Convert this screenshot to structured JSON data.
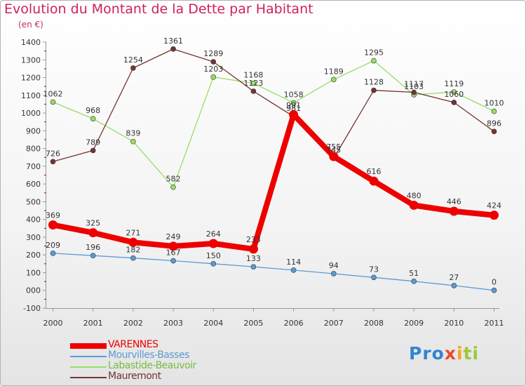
{
  "title": "Evolution du Montant de la Dette par Habitant",
  "unit": "(en €)",
  "logo": {
    "text": "Proxiti"
  },
  "chart_data": {
    "type": "line",
    "x": [
      "2000",
      "2001",
      "2002",
      "2003",
      "2004",
      "2005",
      "2006",
      "2007",
      "2008",
      "2009",
      "2010",
      "2011"
    ],
    "ylim": [
      -100,
      1400
    ],
    "yticks": [
      "-100",
      "000",
      "100",
      "200",
      "300",
      "400",
      "500",
      "600",
      "700",
      "800",
      "900",
      "1000",
      "1100",
      "1200",
      "1300",
      "1400"
    ],
    "grid": false,
    "legend_position": "bottom-left",
    "series": [
      {
        "name": "VARENNES",
        "color": "#ee0000",
        "values": [
          369,
          325,
          271,
          249,
          264,
          233,
          991,
          755,
          616,
          480,
          446,
          424
        ]
      },
      {
        "name": "Mourvilles-Basses",
        "color": "#5b9bd5",
        "values": [
          209,
          196,
          182,
          167,
          150,
          133,
          114,
          94,
          73,
          51,
          27,
          0
        ]
      },
      {
        "name": "Labastide-Beauvoir",
        "color": "#99dd66",
        "values": [
          1062,
          968,
          839,
          582,
          1203,
          1168,
          1058,
          1189,
          1295,
          1103,
          1119,
          1010
        ]
      },
      {
        "name": "Mauremont",
        "color": "#773333",
        "values": [
          726,
          789,
          1254,
          1361,
          1289,
          1123,
          981,
          745,
          1128,
          1117,
          1060,
          896
        ]
      }
    ]
  }
}
